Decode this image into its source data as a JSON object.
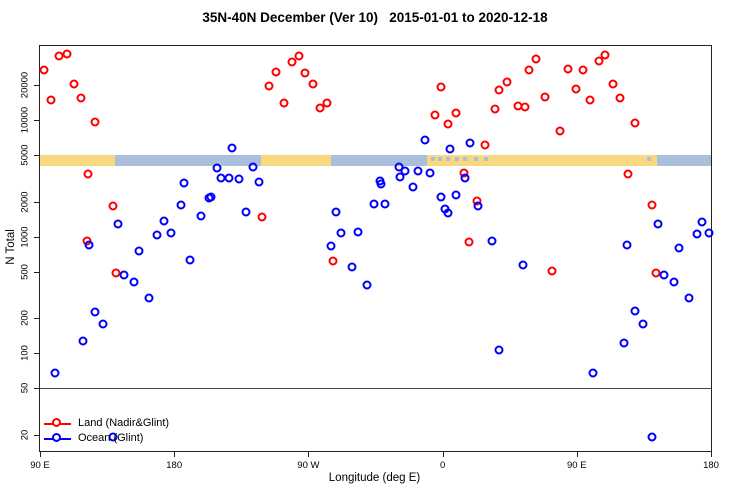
{
  "title": "35N-40N December (Ver 10)   2015-01-01 to 2020-12-18",
  "chart_data": {
    "type": "scatter",
    "title": "35N-40N December (Ver 10)   2015-01-01 to 2020-12-18",
    "xlabel": "Longitude (deg E)",
    "ylabel": "N Total",
    "x_axis": {
      "note": "longitude axis wraps eastward starting at 90E; values stored as continuous degrees 90..540",
      "range": [
        90,
        540
      ],
      "ticks": [
        {
          "deg": 90,
          "label": "90 E"
        },
        {
          "deg": 180,
          "label": "180"
        },
        {
          "deg": 270,
          "label": "90 W"
        },
        {
          "deg": 360,
          "label": "0"
        },
        {
          "deg": 450,
          "label": "90 E"
        },
        {
          "deg": 540,
          "label": "180"
        }
      ]
    },
    "y_axis": {
      "scale": "log10",
      "log_range": [
        1.16,
        4.636
      ],
      "ticks": [
        20,
        50,
        100,
        200,
        500,
        1000,
        2000,
        5000,
        10000,
        20000
      ]
    },
    "reference_line": {
      "value": 50,
      "color": "#444444"
    },
    "land_ocean_band": {
      "description": "land/ocean strip at 35N-40N drawn across plot between N=4000 and N=5000",
      "value_top": 5000,
      "value_bottom": 4000,
      "land_color": "#f8d980",
      "ocean_color": "#aabfdc",
      "segments": [
        {
          "from": 90,
          "to": 140.5,
          "type": "land"
        },
        {
          "from": 140.5,
          "to": 238,
          "type": "ocean"
        },
        {
          "from": 238,
          "to": 285,
          "type": "land"
        },
        {
          "from": 285,
          "to": 349.5,
          "type": "ocean"
        },
        {
          "from": 349.5,
          "to": 503.5,
          "type": "land"
        },
        {
          "from": 503.5,
          "to": 540,
          "type": "ocean"
        }
      ],
      "ocean_specks_on_land": [
        352,
        357,
        362,
        368,
        374,
        381,
        388,
        497
      ],
      "land_specks_on_ocean": [
        118,
        124,
        131
      ]
    },
    "legend": {
      "position": "bottom-left"
    },
    "series": [
      {
        "name": "Land (Nadir&Glint)",
        "color": "#ff0000",
        "points": [
          [
            102.8,
            35500
          ],
          [
            108.2,
            36900
          ],
          [
            92.7,
            26900
          ],
          [
            112.9,
            20400
          ],
          [
            97.4,
            14900
          ],
          [
            117.6,
            15500
          ],
          [
            127.1,
            9600
          ],
          [
            122.3,
            3440
          ],
          [
            139.2,
            1830
          ],
          [
            121.7,
            916
          ],
          [
            141.2,
            487
          ],
          [
            238.9,
            1470
          ],
          [
            248.3,
            25900
          ],
          [
            259.1,
            31500
          ],
          [
            263.8,
            35500
          ],
          [
            267.9,
            25400
          ],
          [
            273.2,
            20400
          ],
          [
            243.6,
            19600
          ],
          [
            253.7,
            14000
          ],
          [
            278.0,
            12700
          ],
          [
            282.7,
            14000
          ],
          [
            286.7,
            617
          ],
          [
            358.8,
            19200
          ],
          [
            354.7,
            11100
          ],
          [
            368.9,
            11500
          ],
          [
            363.5,
            9250
          ],
          [
            397.9,
            18100
          ],
          [
            403.2,
            21200
          ],
          [
            418.1,
            26900
          ],
          [
            422.8,
            33400
          ],
          [
            410.6,
            13200
          ],
          [
            415.4,
            12900
          ],
          [
            395.2,
            12400
          ],
          [
            428.8,
            15800
          ],
          [
            388.4,
            6100
          ],
          [
            374.3,
            3520
          ],
          [
            383.0,
            2020
          ],
          [
            377.7,
            900
          ],
          [
            465.2,
            32100
          ],
          [
            469.2,
            36200
          ],
          [
            444.3,
            27400
          ],
          [
            454.4,
            26900
          ],
          [
            449.7,
            18500
          ],
          [
            459.1,
            14900
          ],
          [
            474.6,
            20400
          ],
          [
            479.3,
            15500
          ],
          [
            488.8,
            9440
          ],
          [
            438.9,
            8060
          ],
          [
            484.1,
            3440
          ],
          [
            500.2,
            1870
          ],
          [
            433.6,
            507
          ],
          [
            502.9,
            487
          ]
        ]
      },
      {
        "name": "Ocean (Glint)",
        "color": "#0000ff",
        "points": [
          [
            142.5,
            1280
          ],
          [
            186.3,
            2880
          ],
          [
            184.3,
            1870
          ],
          [
            203.2,
            2140
          ],
          [
            197.8,
            1500
          ],
          [
            172.9,
            1360
          ],
          [
            177.6,
            1070
          ],
          [
            168.8,
            1030
          ],
          [
            156.5,
            752
          ],
          [
            123.0,
            847
          ],
          [
            190.4,
            630
          ],
          [
            146.6,
            468
          ],
          [
            153.3,
            407
          ],
          [
            162.8,
            297
          ],
          [
            127.1,
            225
          ],
          [
            132.4,
            177
          ],
          [
            119.0,
            127
          ],
          [
            100.1,
            67
          ],
          [
            139.2,
            19
          ],
          [
            218.7,
            5750
          ],
          [
            208.6,
            3870
          ],
          [
            232.8,
            3950
          ],
          [
            211.3,
            3180
          ],
          [
            216.6,
            3180
          ],
          [
            223.4,
            3120
          ],
          [
            236.8,
            2940
          ],
          [
            204.5,
            2190
          ],
          [
            228.1,
            1630
          ],
          [
            317.7,
            3000
          ],
          [
            314.3,
            1910
          ],
          [
            288.7,
            1630
          ],
          [
            292.1,
            1070
          ],
          [
            303.5,
            1090
          ],
          [
            285.4,
            830
          ],
          [
            299.5,
            548
          ],
          [
            309.6,
            384
          ],
          [
            348.0,
            6750
          ],
          [
            378.3,
            6350
          ],
          [
            364.9,
            5650
          ],
          [
            330.5,
            3950
          ],
          [
            334.5,
            3650
          ],
          [
            343.3,
            3650
          ],
          [
            351.4,
            3520
          ],
          [
            331.2,
            3250
          ],
          [
            319.0,
            2820
          ],
          [
            339.9,
            2660
          ],
          [
            374.9,
            3180
          ],
          [
            321.7,
            1910
          ],
          [
            358.8,
            2190
          ],
          [
            368.9,
            2280
          ],
          [
            361.5,
            1730
          ],
          [
            363.5,
            1590
          ],
          [
            383.7,
            1830
          ],
          [
            393.1,
            916
          ],
          [
            414.0,
            570
          ],
          [
            397.9,
            106
          ],
          [
            504.3,
            1280
          ],
          [
            533.9,
            1330
          ],
          [
            530.6,
            1050
          ],
          [
            538.6,
            1070
          ],
          [
            483.4,
            847
          ],
          [
            518.4,
            798
          ],
          [
            508.3,
            468
          ],
          [
            515.1,
            407
          ],
          [
            525.2,
            297
          ],
          [
            488.8,
            230
          ],
          [
            494.2,
            177
          ],
          [
            481.4,
            122
          ],
          [
            460.8,
            67
          ],
          [
            500.5,
            19
          ]
        ]
      }
    ]
  }
}
